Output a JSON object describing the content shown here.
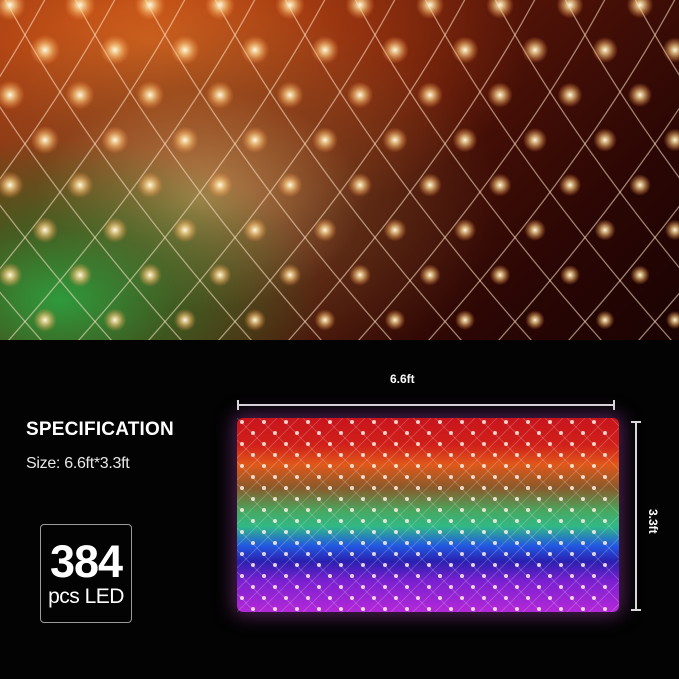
{
  "spec": {
    "title": "SPECIFICATION",
    "size": "Size: 6.6ft*3.3ft"
  },
  "count": {
    "number": "384",
    "unit": "pcs LED"
  },
  "dimensions": {
    "width": "6.6ft",
    "height": "3.3ft"
  },
  "colors": {
    "background": "#030303",
    "text": "#ffffff",
    "bands": [
      "#c8141c",
      "#e0581a",
      "#8a5a2a",
      "#48a860",
      "#2258e0",
      "#2a20b0",
      "#b428d8"
    ]
  }
}
